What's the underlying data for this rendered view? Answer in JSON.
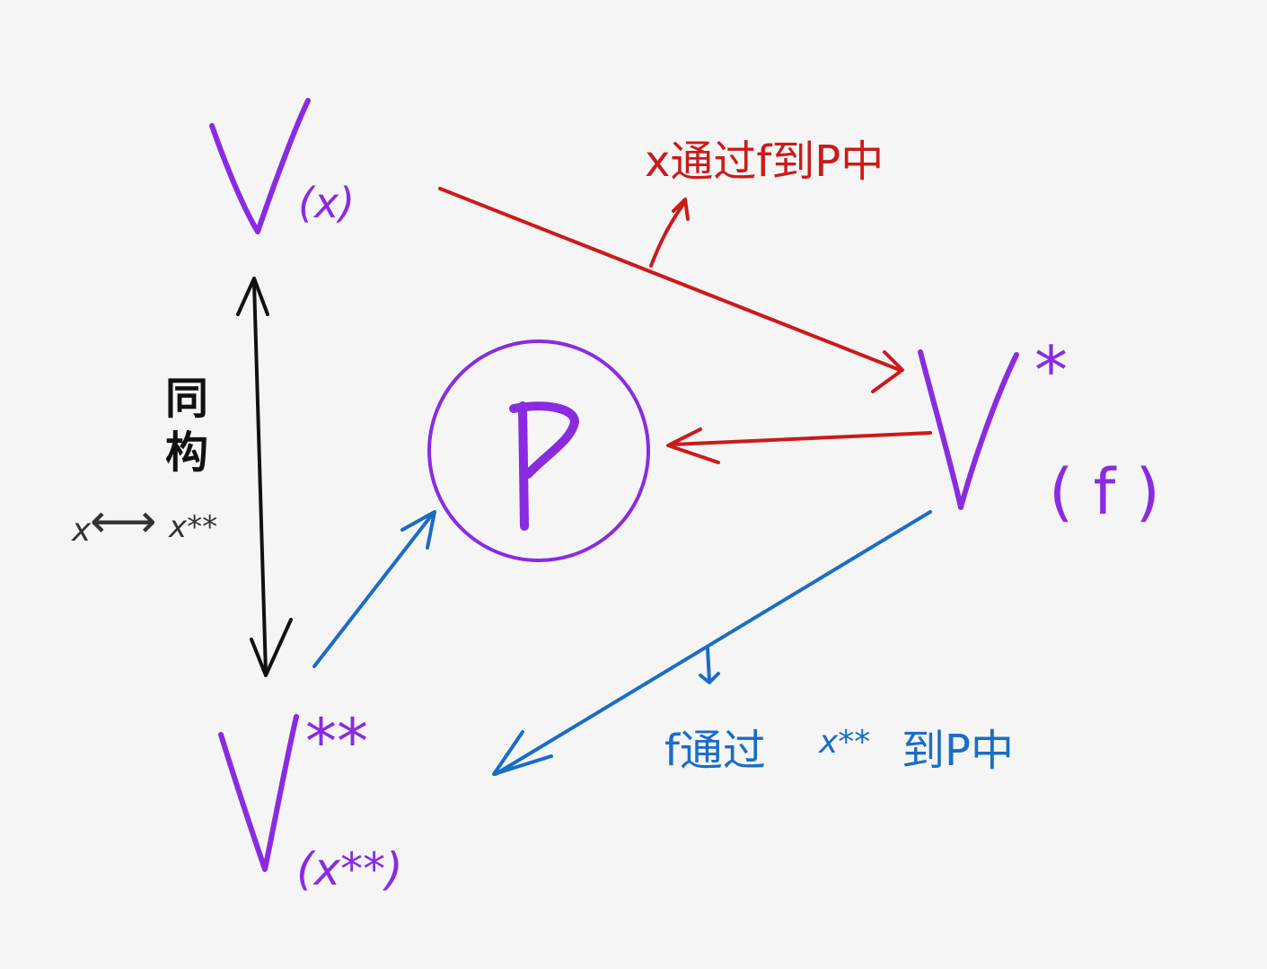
{
  "colors": {
    "background": "#f5f5f5",
    "purple": "#8a2be2",
    "red": "#cc1a1a",
    "blue": "#1a6cc8",
    "black": "#111111"
  },
  "nodes": {
    "v_x": {
      "main": "V",
      "sub": "(x)"
    },
    "v_star": {
      "main": "V",
      "sup": "*",
      "sub": "( f )"
    },
    "v_double_star": {
      "main": "V",
      "sup": "**",
      "sub": "(x**)"
    },
    "center": {
      "label": "P"
    }
  },
  "labels": {
    "isomorphism_line1": "同",
    "isomorphism_line2": "构",
    "mapping_x": "x",
    "mapping_arrow": "⟷",
    "mapping_x_double_star": "x**",
    "red_annotation": "x通过f到P中",
    "blue_annotation_f": "f通过",
    "blue_annotation_x": "x**",
    "blue_annotation_rest": "到P中"
  }
}
